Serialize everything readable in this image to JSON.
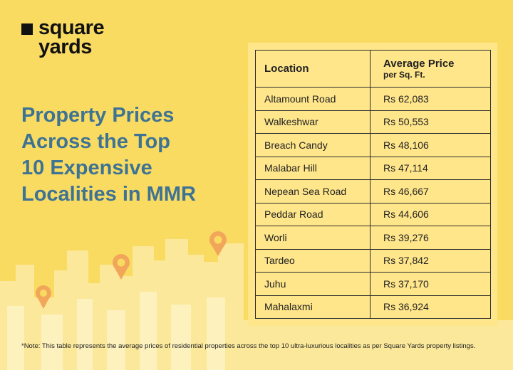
{
  "logo": {
    "line1": "square",
    "line2": "yards"
  },
  "headline": [
    "Property Prices",
    "Across the Top",
    "10 Expensive",
    "Localities in MMR"
  ],
  "table": {
    "headers": {
      "location": "Location",
      "price_main": "Average Price",
      "price_sub": "per Sq. Ft."
    },
    "rows": [
      {
        "location": "Altamount Road",
        "price": "Rs 62,083"
      },
      {
        "location": "Walkeshwar",
        "price": "Rs 50,553"
      },
      {
        "location": "Breach Candy",
        "price": "Rs 48,106"
      },
      {
        "location": "Malabar Hill",
        "price": "Rs 47,114"
      },
      {
        "location": "Nepean Sea Road",
        "price": "Rs 46,667"
      },
      {
        "location": "Peddar Road",
        "price": "Rs 44,606"
      },
      {
        "location": "Worli",
        "price": "Rs 39,276"
      },
      {
        "location": "Tardeo",
        "price": "Rs 37,842"
      },
      {
        "location": "Juhu",
        "price": "Rs 37,170"
      },
      {
        "location": "Mahalaxmi",
        "price": "Rs 36,924"
      }
    ]
  },
  "note": "*Note: This table represents the average prices of residential properties across the top 10 ultra-luxurious localities as per Square Yards property listings.",
  "colors": {
    "background": "#f9db62",
    "headline": "#3e7393",
    "table_bg": "#ffe68b",
    "pin": "#f2a65a"
  }
}
